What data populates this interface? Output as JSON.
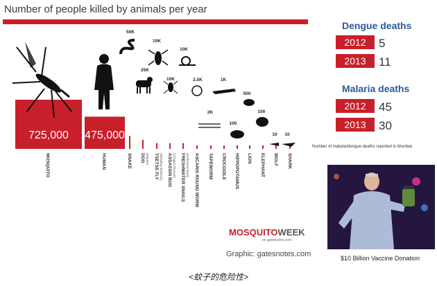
{
  "chart_data": {
    "type": "bar",
    "title": "Number of people killed by animals per year",
    "categories": [
      "MOSQUITO",
      "HUMAN",
      "SNAKE",
      "DOG",
      "TSETSE FLY",
      "ASSASSIN BUG",
      "FRESHWATER SNAILS",
      "ASCARIS ROUND WORM",
      "TAPEWORM",
      "CROCODILE",
      "HIPPOPOTAMUS",
      "LION",
      "ELEPHANT",
      "WOLF",
      "SHARK"
    ],
    "sublabels": {
      "DOG": "(Rabies)",
      "TSETSE FLY": "(Sleeping Sickness)",
      "ASSASSIN BUG": "(Chagas Disease)",
      "FRESHWATER SNAILS": "(Schistosomiasis)"
    },
    "values": [
      725000,
      475000,
      50000,
      25000,
      10000,
      10000,
      10000,
      2500,
      2000,
      1000,
      500,
      100,
      100,
      10,
      10
    ],
    "value_labels": [
      "725,000",
      "475,000",
      "50K",
      "25K",
      "10K",
      "10K",
      "10K",
      "2.5K",
      "2K",
      "1K",
      "500",
      "100",
      "100",
      "10",
      "10"
    ],
    "icons": [
      "mosquito-icon",
      "human-icon",
      "snake-icon",
      "dog-icon",
      "tsetse-fly-icon",
      "assassin-bug-icon",
      "snail-icon",
      "round-worm-icon",
      "tapeworm-icon",
      "crocodile-icon",
      "hippopotamus-icon",
      "lion-icon",
      "elephant-icon",
      "wolf-icon",
      "shark-icon"
    ]
  },
  "brand": {
    "logo_a": "MOSQUITO",
    "logo_b": "WEEK",
    "logo_sub": "on gatesnotes.com",
    "credit": "Graphic: gatesnotes.com"
  },
  "dengue": {
    "title": "Dengue deaths",
    "rows": [
      {
        "year": "2012",
        "value": "5"
      },
      {
        "year": "2013",
        "value": "11"
      }
    ]
  },
  "malaria": {
    "title": "Malaria deaths",
    "rows": [
      {
        "year": "2012",
        "value": "45"
      },
      {
        "year": "2013",
        "value": "30"
      }
    ]
  },
  "note": "Number of malaria/dengue deaths reported in Mumbai",
  "photo_caption": "$10 Billion Vaccine Donation",
  "caption": "<蚊子的危险性>",
  "colors": {
    "red": "#c8202a",
    "blue": "#2a5a9a"
  }
}
